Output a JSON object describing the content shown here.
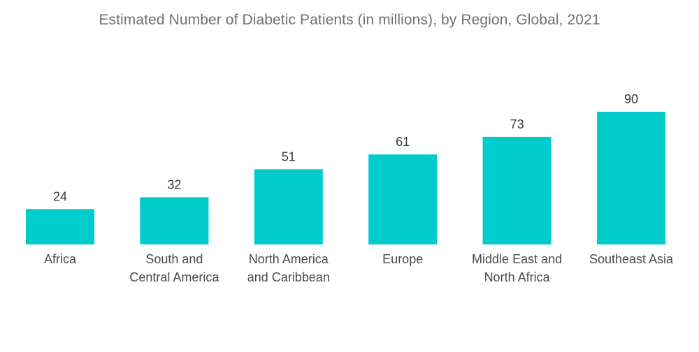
{
  "chart_data": {
    "type": "bar",
    "title": "Estimated Number of Diabetic Patients (in millions), by Region, Global, 2021",
    "categories": [
      [
        "Africa"
      ],
      [
        "South and",
        "Central America"
      ],
      [
        "North America",
        "and Caribbean"
      ],
      [
        "Europe"
      ],
      [
        "Middle East and",
        "North Africa"
      ],
      [
        "Southeast Asia"
      ]
    ],
    "values": [
      24,
      32,
      51,
      61,
      73,
      90
    ],
    "data_labels": [
      "24",
      "32",
      "51",
      "61",
      "73",
      "90"
    ],
    "xlabel": "",
    "ylabel": "",
    "ylim": [
      0,
      90
    ],
    "grid": false,
    "legend": "none",
    "bar_color": "#00CCCC"
  }
}
